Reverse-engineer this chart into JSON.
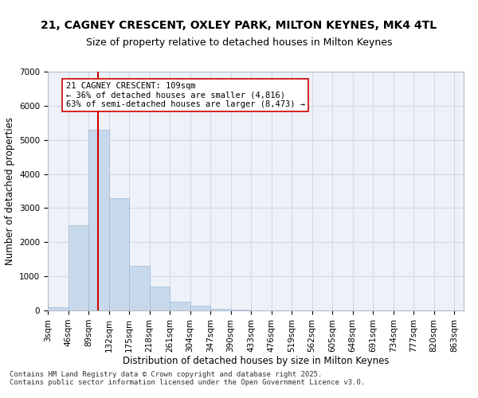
{
  "title1": "21, CAGNEY CRESCENT, OXLEY PARK, MILTON KEYNES, MK4 4TL",
  "title2": "Size of property relative to detached houses in Milton Keynes",
  "xlabel": "Distribution of detached houses by size in Milton Keynes",
  "ylabel": "Number of detached properties",
  "bar_color": "#c9d9ec",
  "bar_edge_color": "#a0b8d8",
  "bar_left_edges": [
    3,
    46,
    89,
    132,
    175,
    218,
    261,
    304,
    347,
    390,
    433,
    476,
    519,
    562,
    605,
    648,
    691,
    734,
    777,
    820
  ],
  "bar_heights": [
    100,
    2500,
    5300,
    3300,
    1300,
    700,
    250,
    150,
    50,
    20,
    5,
    3,
    2,
    1,
    1,
    0,
    0,
    0,
    0,
    0
  ],
  "bin_width": 43,
  "property_size": 109,
  "vline_color": "#cc0000",
  "annotation_text": "21 CAGNEY CRESCENT: 109sqm\n← 36% of detached houses are smaller (4,816)\n63% of semi-detached houses are larger (8,473) →",
  "annotation_box_color": "#ffffff",
  "annotation_box_edge": "#cc0000",
  "ylim": [
    0,
    7000
  ],
  "yticks": [
    0,
    1000,
    2000,
    3000,
    4000,
    5000,
    6000,
    7000
  ],
  "xtick_labels": [
    "3sqm",
    "46sqm",
    "89sqm",
    "132sqm",
    "175sqm",
    "218sqm",
    "261sqm",
    "304sqm",
    "347sqm",
    "390sqm",
    "433sqm",
    "476sqm",
    "519sqm",
    "562sqm",
    "605sqm",
    "648sqm",
    "691sqm",
    "734sqm",
    "777sqm",
    "820sqm",
    "863sqm"
  ],
  "xtick_positions": [
    3,
    46,
    89,
    132,
    175,
    218,
    261,
    304,
    347,
    390,
    433,
    476,
    519,
    562,
    605,
    648,
    691,
    734,
    777,
    820,
    863
  ],
  "grid_color": "#d0d8e8",
  "background_color": "#eef2f8",
  "footer_text": "Contains HM Land Registry data © Crown copyright and database right 2025.\nContains public sector information licensed under the Open Government Licence v3.0.",
  "title_fontsize": 10,
  "subtitle_fontsize": 9,
  "axis_fontsize": 8.5,
  "tick_fontsize": 7.5
}
